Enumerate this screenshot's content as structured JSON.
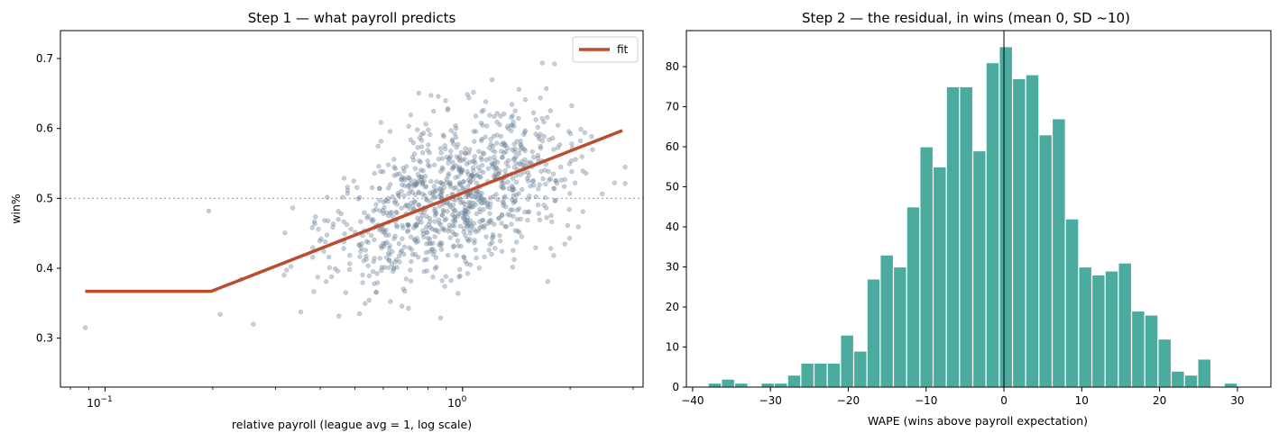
{
  "chart_data": [
    {
      "type": "scatter",
      "title": "Step 1 — what payroll predicts",
      "xlabel": "relative payroll (league avg = 1, log scale)",
      "ylabel": "win%",
      "x_scale": "log",
      "xlim": [
        0.075,
        3.2
      ],
      "ylim": [
        0.23,
        0.74
      ],
      "x_ticks": [
        {
          "value": 0.1,
          "base": "10",
          "exp": "−1"
        },
        {
          "value": 1,
          "base": "10",
          "exp": "0"
        }
      ],
      "y_ticks": [
        0.3,
        0.4,
        0.5,
        0.6,
        0.7
      ],
      "reference_line_y": 0.5,
      "legend": {
        "position": "top-right",
        "entries": [
          "fit"
        ]
      },
      "fit_line": {
        "name": "fit",
        "color": "#bd4c2e",
        "points": [
          [
            0.088,
            0.367
          ],
          [
            0.198,
            0.367
          ],
          [
            2.8,
            0.597
          ]
        ]
      },
      "scatter_color": "#6d8499",
      "point_count": 1000,
      "grid": false
    },
    {
      "type": "bar",
      "title": "Step 2 — the residual, in wins (mean 0, SD ~10)",
      "xlabel": "WAPE (wins above payroll expectation)",
      "ylabel": "",
      "xlim": [
        -40.8,
        34.3
      ],
      "ylim": [
        0,
        89
      ],
      "x_ticks": [
        -40,
        -30,
        -20,
        -10,
        0,
        10,
        20,
        30
      ],
      "y_ticks": [
        0,
        10,
        20,
        30,
        40,
        50,
        60,
        70,
        80
      ],
      "bin_start": -38,
      "bin_width": 1.7,
      "counts": [
        1,
        2,
        1,
        0,
        1,
        1,
        3,
        6,
        6,
        6,
        13,
        9,
        27,
        33,
        30,
        45,
        60,
        55,
        75,
        75,
        59,
        81,
        85,
        77,
        78,
        63,
        67,
        42,
        30,
        28,
        29,
        31,
        19,
        18,
        12,
        4,
        3,
        7,
        0,
        1
      ],
      "vline_x": 0,
      "bar_color": "#4aab9e",
      "grid": false
    }
  ]
}
